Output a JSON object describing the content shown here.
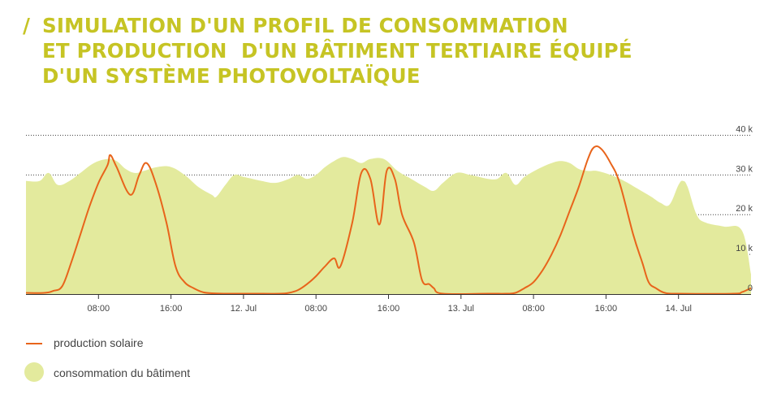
{
  "header": {
    "slash": "/",
    "title_lines": [
      "SIMULATION D'UN PROFIL DE CONSOMMATION",
      "ET PRODUCTION  D'UN BÂTIMENT TERTIAIRE ÉQUIPÉ",
      "D'UN SYSTÈME PHOTOVOLTAÏQUE"
    ]
  },
  "colors": {
    "title": "#c6c424",
    "production": "#e8641b",
    "consumption": "#e3ea9d",
    "grid": "#444444",
    "axis_text": "#444444"
  },
  "legend": {
    "production_label": "production solaire",
    "consumption_label": "consommation du bâtiment"
  },
  "chart_data": {
    "type": "area",
    "x_unit": "hours",
    "x_range": [
      0,
      80
    ],
    "ylim": [
      0,
      45000
    ],
    "grid": "horizontal-dotted",
    "legend_position": "bottom-left",
    "y_ticks": [
      {
        "value": 0,
        "label": "0"
      },
      {
        "value": 10000,
        "label": "10 k"
      },
      {
        "value": 20000,
        "label": "20 k"
      },
      {
        "value": 30000,
        "label": "30 k"
      },
      {
        "value": 40000,
        "label": "40 k"
      }
    ],
    "x_ticks": [
      {
        "x": 8,
        "label": "08:00"
      },
      {
        "x": 16,
        "label": "16:00"
      },
      {
        "x": 24,
        "label": "12. Jul"
      },
      {
        "x": 32,
        "label": "08:00"
      },
      {
        "x": 40,
        "label": "16:00"
      },
      {
        "x": 48,
        "label": "13. Jul"
      },
      {
        "x": 56,
        "label": "08:00"
      },
      {
        "x": 64,
        "label": "16:00"
      },
      {
        "x": 72,
        "label": "14. Jul"
      }
    ],
    "series": [
      {
        "name": "consommation du bâtiment",
        "kind": "area",
        "points": [
          [
            0,
            28500
          ],
          [
            1.5,
            28500
          ],
          [
            2.5,
            30500
          ],
          [
            3.5,
            27500
          ],
          [
            4.8,
            28500
          ],
          [
            6,
            30500
          ],
          [
            7.5,
            33000
          ],
          [
            9,
            34000
          ],
          [
            10,
            33500
          ],
          [
            11,
            31500
          ],
          [
            12,
            30500
          ],
          [
            13,
            31000
          ],
          [
            14.5,
            32000
          ],
          [
            16,
            32000
          ],
          [
            17.5,
            30000
          ],
          [
            19,
            27000
          ],
          [
            20.5,
            25000
          ],
          [
            21,
            24500
          ],
          [
            22,
            27500
          ],
          [
            23,
            30000
          ],
          [
            24,
            29500
          ],
          [
            25,
            29000
          ],
          [
            26,
            28500
          ],
          [
            27.5,
            28000
          ],
          [
            29,
            29000
          ],
          [
            30,
            30000
          ],
          [
            31,
            29000
          ],
          [
            32,
            30000
          ],
          [
            33,
            32000
          ],
          [
            34,
            33500
          ],
          [
            35,
            34500
          ],
          [
            36,
            34000
          ],
          [
            37,
            33000
          ],
          [
            38,
            34000
          ],
          [
            39.5,
            34000
          ],
          [
            41,
            31000
          ],
          [
            42.5,
            29000
          ],
          [
            44,
            27000
          ],
          [
            45,
            26000
          ],
          [
            46,
            28000
          ],
          [
            47.5,
            30500
          ],
          [
            49,
            30000
          ],
          [
            50,
            29500
          ],
          [
            51,
            29000
          ],
          [
            52,
            29000
          ],
          [
            53,
            30500
          ],
          [
            54,
            27500
          ],
          [
            55,
            29500
          ],
          [
            56.5,
            31500
          ],
          [
            58,
            33000
          ],
          [
            59,
            33500
          ],
          [
            60,
            33000
          ],
          [
            61,
            31500
          ],
          [
            62,
            31000
          ],
          [
            63,
            31000
          ],
          [
            64.5,
            30000
          ],
          [
            66,
            28500
          ],
          [
            67.5,
            26500
          ],
          [
            69,
            24500
          ],
          [
            70,
            23000
          ],
          [
            71,
            22500
          ],
          [
            72,
            27500
          ],
          [
            72.5,
            28500
          ],
          [
            73,
            27000
          ],
          [
            74,
            20000
          ],
          [
            75,
            18000
          ],
          [
            77,
            17000
          ],
          [
            79,
            16000
          ],
          [
            80,
            5000
          ]
        ]
      },
      {
        "name": "production solaire",
        "kind": "line",
        "points": [
          [
            0,
            300
          ],
          [
            2,
            300
          ],
          [
            3,
            800
          ],
          [
            4,
            2000
          ],
          [
            5,
            8000
          ],
          [
            6,
            15000
          ],
          [
            7,
            22000
          ],
          [
            8,
            28000
          ],
          [
            9,
            32500
          ],
          [
            9.3,
            35000
          ],
          [
            10,
            32000
          ],
          [
            11.5,
            25000
          ],
          [
            12.5,
            30000
          ],
          [
            13.3,
            33000
          ],
          [
            14.3,
            28000
          ],
          [
            15.5,
            18000
          ],
          [
            16.5,
            7000
          ],
          [
            17.5,
            3000
          ],
          [
            18.5,
            1500
          ],
          [
            19.5,
            500
          ],
          [
            20.5,
            200
          ],
          [
            22,
            100
          ],
          [
            25,
            100
          ],
          [
            28,
            100
          ],
          [
            29,
            300
          ],
          [
            30,
            1000
          ],
          [
            31,
            2500
          ],
          [
            32,
            4500
          ],
          [
            33,
            7000
          ],
          [
            34,
            9000
          ],
          [
            34.7,
            7000
          ],
          [
            36,
            18000
          ],
          [
            37,
            30500
          ],
          [
            38,
            29000
          ],
          [
            39,
            17500
          ],
          [
            39.8,
            31000
          ],
          [
            40.7,
            29000
          ],
          [
            41.5,
            20000
          ],
          [
            42.8,
            13000
          ],
          [
            43.7,
            3500
          ],
          [
            44.5,
            2500
          ],
          [
            45,
            1500
          ],
          [
            46,
            100
          ],
          [
            51,
            100
          ],
          [
            53,
            100
          ],
          [
            54,
            300
          ],
          [
            55,
            1500
          ],
          [
            56,
            3000
          ],
          [
            57,
            6000
          ],
          [
            58,
            10000
          ],
          [
            59,
            15000
          ],
          [
            60,
            21000
          ],
          [
            61,
            27000
          ],
          [
            62,
            34000
          ],
          [
            62.7,
            37000
          ],
          [
            63.5,
            36500
          ],
          [
            64.5,
            33000
          ],
          [
            65.5,
            28000
          ],
          [
            67,
            15000
          ],
          [
            68,
            8000
          ],
          [
            68.7,
            3000
          ],
          [
            69.5,
            1500
          ],
          [
            70.5,
            300
          ],
          [
            72,
            100
          ],
          [
            78,
            100
          ],
          [
            79,
            500
          ],
          [
            80,
            1500
          ]
        ]
      }
    ]
  }
}
